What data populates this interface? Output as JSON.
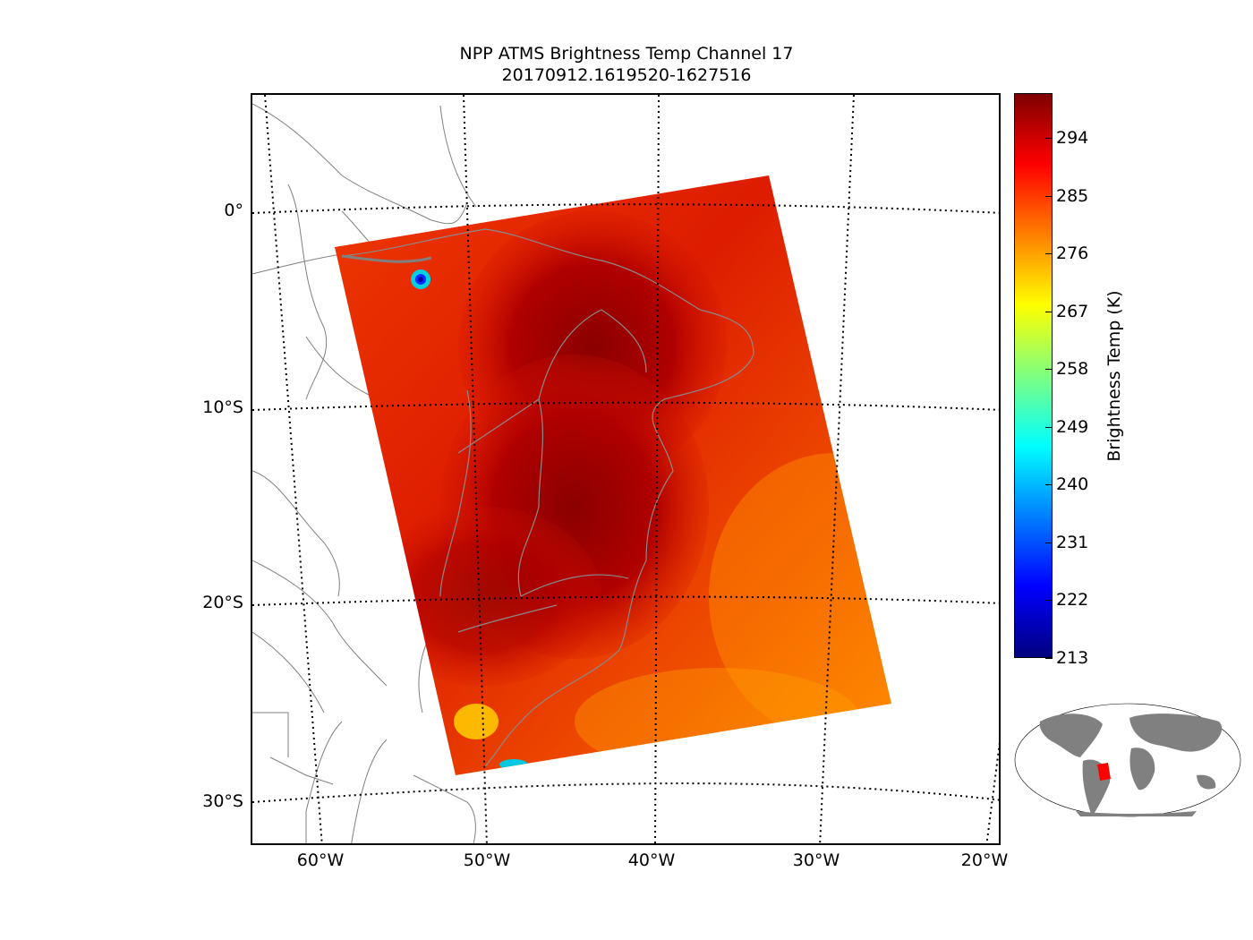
{
  "title": {
    "line1": "NPP ATMS Brightness Temp Channel 17",
    "line2": "20170912.1619520-1627516"
  },
  "map": {
    "lat_labels": [
      "0°",
      "10°S",
      "20°S",
      "30°S"
    ],
    "lon_labels": [
      "60°W",
      "50°W",
      "40°W",
      "30°W",
      "20°W"
    ],
    "gridline_style": "dotted black",
    "coastline_color": "#808080",
    "swath_colors": {
      "dominant": "#e02000",
      "hot_core": "#8b0000",
      "ocean": "#f06000"
    }
  },
  "colorbar": {
    "label": "Brightness Temp (K)",
    "ticks": [
      "294",
      "285",
      "276",
      "267",
      "258",
      "249",
      "240",
      "231",
      "222",
      "213"
    ],
    "min": 213,
    "max": 301,
    "colormap": "jet"
  },
  "inset": {
    "land_color": "#808080",
    "highlight_color": "#ff0000"
  }
}
